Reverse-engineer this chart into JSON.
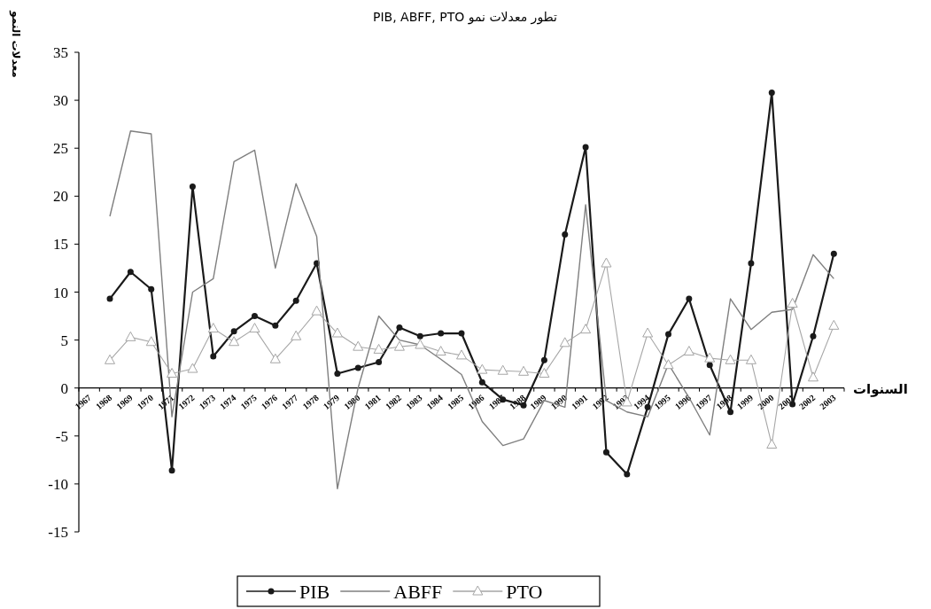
{
  "chart_data": {
    "type": "line",
    "title": "تطور معدلات نمو PIB, ABFF, PTO",
    "xlabel": "السنوات",
    "ylabel": "معدلات النمو",
    "categories": [
      "1967",
      "1968",
      "1969",
      "1970",
      "1971",
      "1972",
      "1973",
      "1974",
      "1975",
      "1976",
      "1977",
      "1978",
      "1979",
      "1980",
      "1981",
      "1982",
      "1983",
      "1984",
      "1985",
      "1986",
      "1987",
      "1988",
      "1989",
      "1990",
      "1991",
      "1992",
      "1993",
      "1994",
      "1995",
      "1996",
      "1997",
      "1998",
      "1999",
      "2000",
      "2001",
      "2002",
      "2003"
    ],
    "series": [
      {
        "name": "PIB",
        "color": "#1a1a1a",
        "marker": "circle",
        "values": [
          null,
          9.3,
          12.1,
          10.3,
          -8.6,
          21.0,
          3.3,
          5.9,
          7.5,
          6.5,
          9.1,
          13.0,
          1.5,
          2.1,
          2.7,
          6.3,
          5.4,
          5.7,
          5.7,
          0.6,
          -1.2,
          -1.8,
          2.9,
          16.0,
          25.1,
          -6.7,
          -9.0,
          -2.0,
          5.6,
          9.3,
          2.4,
          -2.5,
          13.0,
          30.8,
          -1.7,
          5.4,
          14.0
        ]
      },
      {
        "name": "ABFF",
        "color": "#7f7f7f",
        "marker": "none",
        "values": [
          null,
          17.9,
          26.8,
          26.5,
          -3.0,
          10.0,
          11.4,
          23.6,
          24.8,
          12.5,
          21.3,
          15.8,
          -10.5,
          0.0,
          7.5,
          5.0,
          4.5,
          3.0,
          1.4,
          -3.5,
          -6.0,
          -5.3,
          -1.3,
          -2.0,
          19.1,
          -1.3,
          -2.5,
          -3.0,
          2.5,
          -1.0,
          -4.9,
          9.3,
          6.1,
          7.9,
          8.2,
          13.9,
          11.4
        ]
      },
      {
        "name": "PTO",
        "color": "#a6a6a6",
        "marker": "triangle",
        "values": [
          null,
          2.9,
          5.3,
          4.8,
          1.5,
          2.0,
          6.2,
          4.8,
          6.2,
          3.0,
          5.4,
          8.0,
          5.7,
          4.3,
          4.0,
          4.3,
          4.5,
          3.8,
          3.4,
          1.9,
          1.8,
          1.7,
          1.5,
          4.7,
          6.1,
          13.0,
          -1.5,
          5.7,
          2.4,
          3.8,
          3.1,
          2.9,
          2.9,
          -5.9,
          8.8,
          1.1,
          6.5
        ]
      }
    ],
    "ylim": [
      -15,
      35
    ],
    "yticks": [
      -15,
      -10,
      -5,
      0,
      5,
      10,
      15,
      20,
      25,
      30,
      35
    ],
    "legend": "bottom",
    "grid": false
  }
}
